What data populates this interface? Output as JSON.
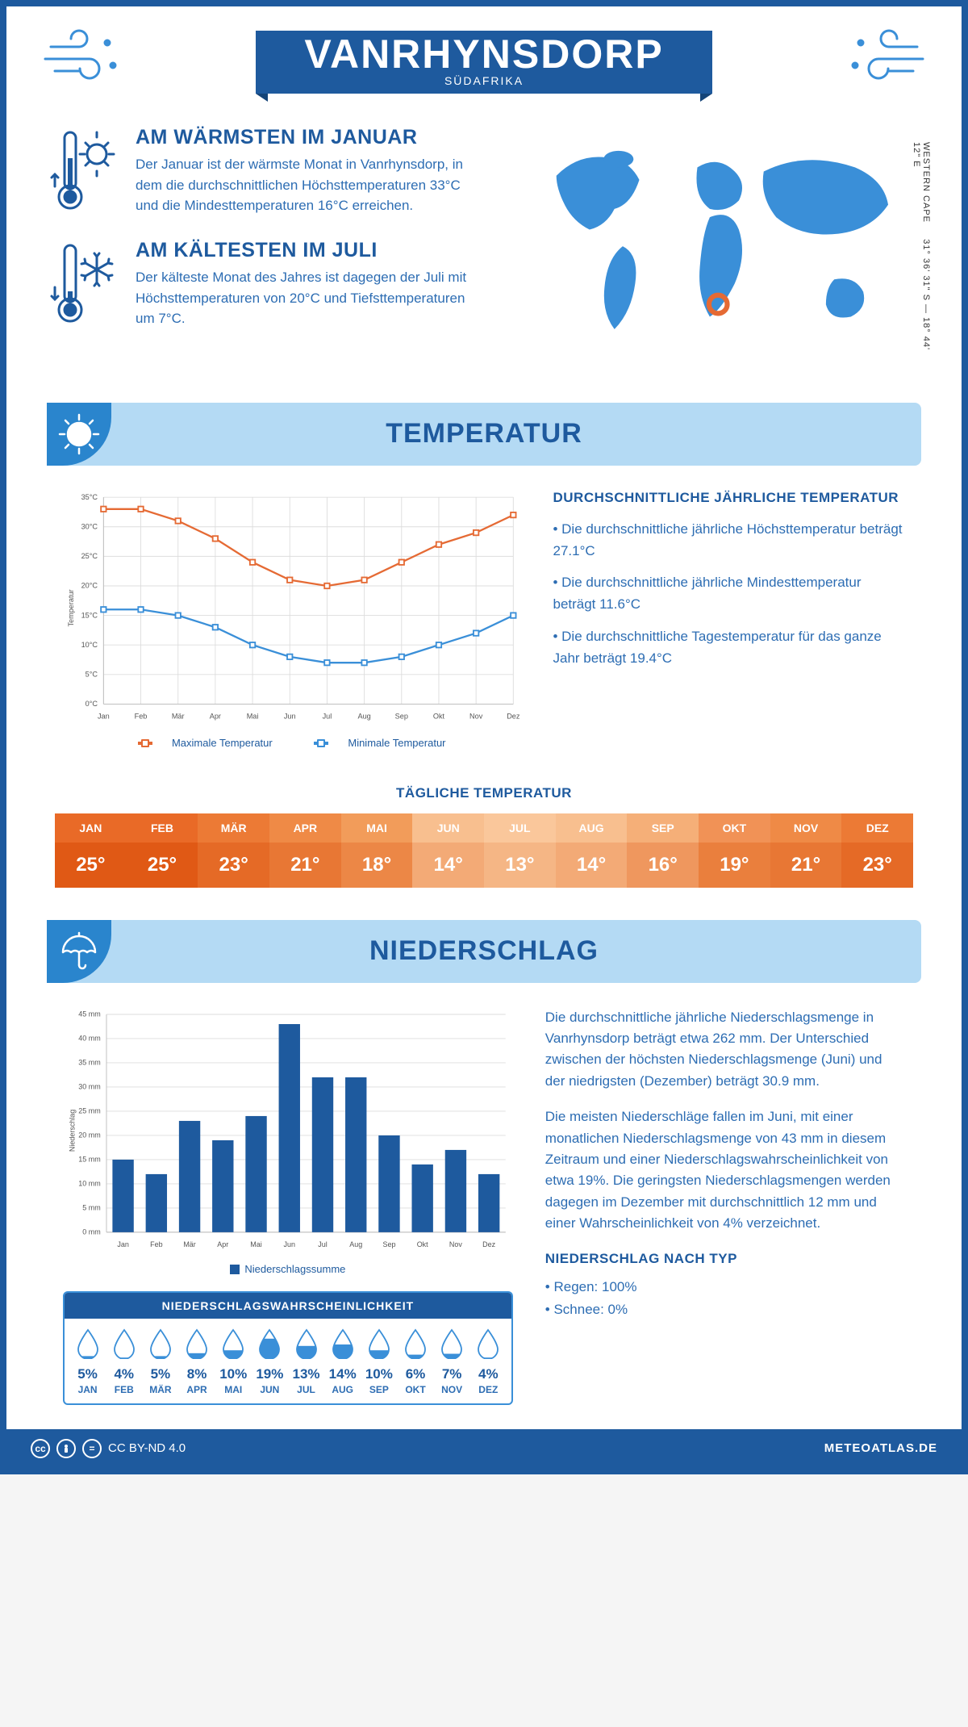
{
  "header": {
    "city": "VANRHYNSDORP",
    "country": "SÜDAFRIKA"
  },
  "coords": {
    "lat": "31° 36' 31\" S",
    "sep": " — ",
    "lon": "18° 44' 12\" E",
    "region": "WESTERN CAPE"
  },
  "warm": {
    "title": "AM WÄRMSTEN IM JANUAR",
    "text": "Der Januar ist der wärmste Monat in Vanrhynsdorp, in dem die durchschnittlichen Höchsttemperaturen 33°C und die Mindesttemperaturen 16°C erreichen."
  },
  "cold": {
    "title": "AM KÄLTESTEN IM JULI",
    "text": "Der kälteste Monat des Jahres ist dagegen der Juli mit Höchsttemperaturen von 20°C und Tiefsttemperaturen um 7°C."
  },
  "sections": {
    "temperature": "TEMPERATUR",
    "precip": "NIEDERSCHLAG"
  },
  "months": [
    "Jan",
    "Feb",
    "Mär",
    "Apr",
    "Mai",
    "Jun",
    "Jul",
    "Aug",
    "Sep",
    "Okt",
    "Nov",
    "Dez"
  ],
  "monthsUpper": [
    "JAN",
    "FEB",
    "MÄR",
    "APR",
    "MAI",
    "JUN",
    "JUL",
    "AUG",
    "SEP",
    "OKT",
    "NOV",
    "DEZ"
  ],
  "tempChart": {
    "ylabel": "Temperatur",
    "ylim": [
      0,
      35
    ],
    "ytick_step": 5,
    "max_series": [
      33,
      33,
      31,
      28,
      24,
      21,
      20,
      21,
      24,
      27,
      29,
      32
    ],
    "min_series": [
      16,
      16,
      15,
      13,
      10,
      8,
      7,
      7,
      8,
      10,
      12,
      15
    ],
    "colors": {
      "max": "#e56a34",
      "min": "#3a8fd8",
      "grid": "#dddddd",
      "axis": "#999999"
    },
    "legend_max": "Maximale Temperatur",
    "legend_min": "Minimale Temperatur"
  },
  "tempText": {
    "title": "DURCHSCHNITTLICHE JÄHRLICHE TEMPERATUR",
    "b1": "• Die durchschnittliche jährliche Höchsttemperatur beträgt 27.1°C",
    "b2": "• Die durchschnittliche jährliche Mindesttemperatur beträgt 11.6°C",
    "b3": "• Die durchschnittliche Tagestemperatur für das ganze Jahr beträgt 19.4°C"
  },
  "daily": {
    "title": "TÄGLICHE TEMPERATUR",
    "values": [
      "25°",
      "25°",
      "23°",
      "21°",
      "18°",
      "14°",
      "13°",
      "14°",
      "16°",
      "19°",
      "21°",
      "23°"
    ],
    "colors": [
      "#e96a27",
      "#e96a27",
      "#ec7a35",
      "#ef8a46",
      "#f29c5a",
      "#f8bf8f",
      "#fac79b",
      "#f8bf8f",
      "#f5af78",
      "#f19256",
      "#ef8a46",
      "#ec7a35"
    ],
    "valColors": [
      "#e05915",
      "#e05915",
      "#e56a26",
      "#e87734",
      "#ec8746",
      "#f3aa76",
      "#f5b685",
      "#f3aa76",
      "#ef975e",
      "#ea7f3d",
      "#e87734",
      "#e56a26"
    ]
  },
  "precipChart": {
    "ylabel": "Niederschlag",
    "ylim": [
      0,
      45
    ],
    "ytick_step": 5,
    "unit": " mm",
    "values": [
      15,
      12,
      23,
      19,
      24,
      43,
      32,
      32,
      20,
      14,
      17,
      12
    ],
    "bar_color": "#1e5a9e",
    "legend": "Niederschlagssumme"
  },
  "precipText": {
    "p1": "Die durchschnittliche jährliche Niederschlagsmenge in Vanrhynsdorp beträgt etwa 262 mm. Der Unterschied zwischen der höchsten Niederschlagsmenge (Juni) und der niedrigsten (Dezember) beträgt 30.9 mm.",
    "p2": "Die meisten Niederschläge fallen im Juni, mit einer monatlichen Niederschlagsmenge von 43 mm in diesem Zeitraum und einer Niederschlagswahrscheinlichkeit von etwa 19%. Die geringsten Niederschlagsmengen werden dagegen im Dezember mit durchschnittlich 12 mm und einer Wahrscheinlichkeit von 4% verzeichnet.",
    "typeTitle": "NIEDERSCHLAG NACH TYP",
    "t1": "• Regen: 100%",
    "t2": "• Schnee: 0%"
  },
  "probability": {
    "title": "NIEDERSCHLAGSWAHRSCHEINLICHKEIT",
    "values": [
      "5%",
      "4%",
      "5%",
      "8%",
      "10%",
      "19%",
      "13%",
      "14%",
      "10%",
      "6%",
      "7%",
      "4%"
    ],
    "fills": [
      0.1,
      0.05,
      0.1,
      0.2,
      0.3,
      0.7,
      0.45,
      0.5,
      0.3,
      0.15,
      0.18,
      0.05
    ]
  },
  "footer": {
    "license": "CC BY-ND 4.0",
    "brand": "METEOATLAS.DE"
  }
}
